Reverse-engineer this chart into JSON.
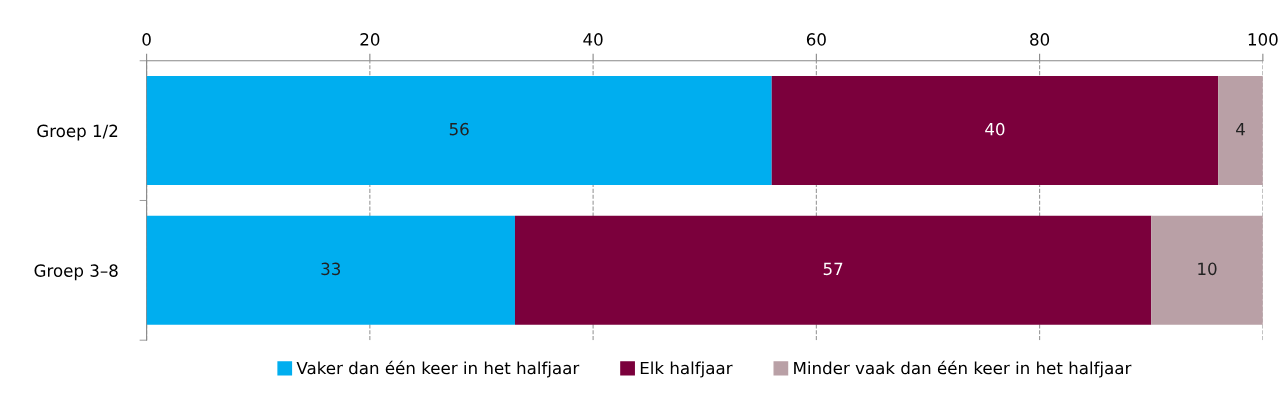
{
  "chart_data": {
    "type": "bar",
    "orientation": "horizontal",
    "stacked": true,
    "categories": [
      "Groep 1/2",
      "Groep 3–8"
    ],
    "series": [
      {
        "name": "Vaker dan één keer in het halfjaar",
        "color": "#00aeef",
        "values": [
          56,
          33
        ]
      },
      {
        "name": "Elk halfjaar",
        "color": "#7b003c",
        "values": [
          40,
          57
        ]
      },
      {
        "name": "Minder vaak dan één keer in het halfjaar",
        "color": "#b9a0a6",
        "values": [
          4,
          10
        ]
      }
    ],
    "xlim": [
      0,
      100
    ],
    "xticks": [
      0,
      20,
      40,
      60,
      80,
      100
    ],
    "grid": "x",
    "legend": "bottom",
    "data_labels": true
  }
}
